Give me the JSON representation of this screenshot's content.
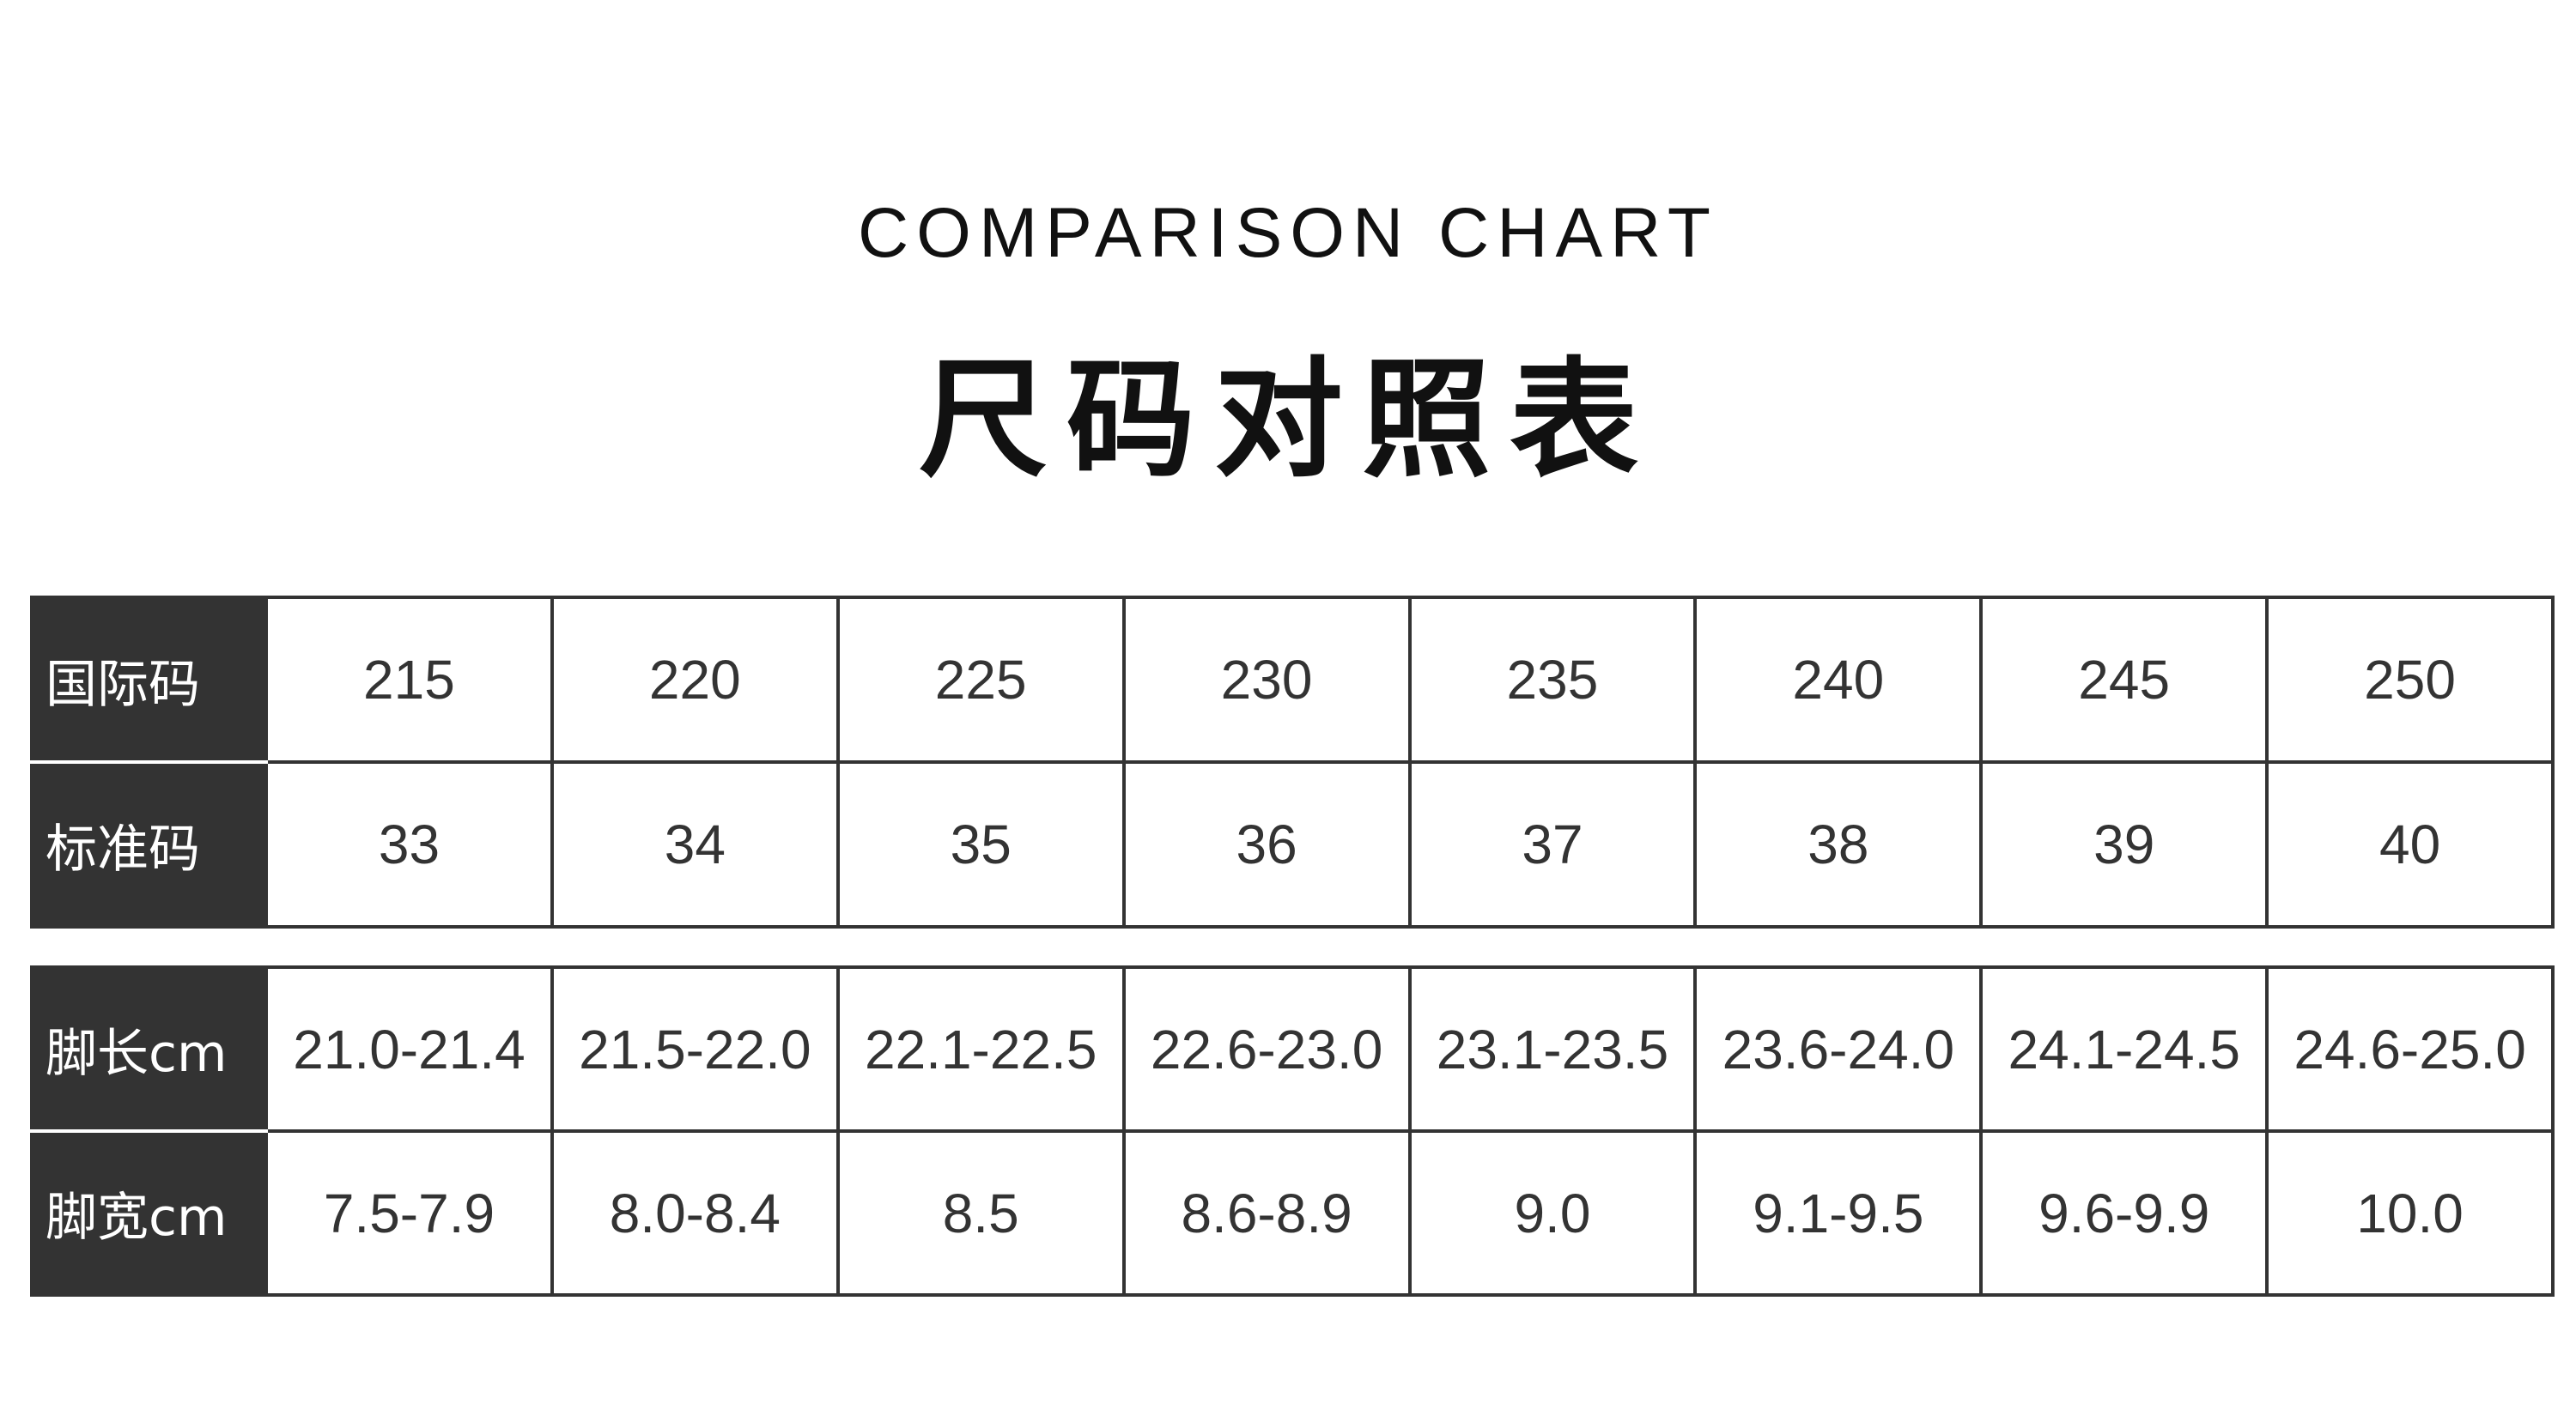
{
  "subtitle": "COMPARISON CHART",
  "title": "尺码对照表",
  "table1": [
    {
      "label": "国际码",
      "values": [
        "215",
        "220",
        "225",
        "230",
        "235",
        "240",
        "245",
        "250"
      ]
    },
    {
      "label": "标准码",
      "values": [
        "33",
        "34",
        "35",
        "36",
        "37",
        "38",
        "39",
        "40"
      ]
    }
  ],
  "table2": [
    {
      "label": "脚长cm",
      "values": [
        "21.0-21.4",
        "21.5-22.0",
        "22.1-22.5",
        "22.6-23.0",
        "23.1-23.5",
        "23.6-24.0",
        "24.1-24.5",
        "24.6-25.0"
      ]
    },
    {
      "label": "脚宽cm",
      "values": [
        "7.5-7.9",
        "8.0-8.4",
        "8.5",
        "8.6-8.9",
        "9.0",
        "9.1-9.5",
        "9.6-9.9",
        "10.0"
      ]
    }
  ],
  "colors": {
    "header_bg": "#333333",
    "text": "#333333",
    "border": "#333333"
  }
}
